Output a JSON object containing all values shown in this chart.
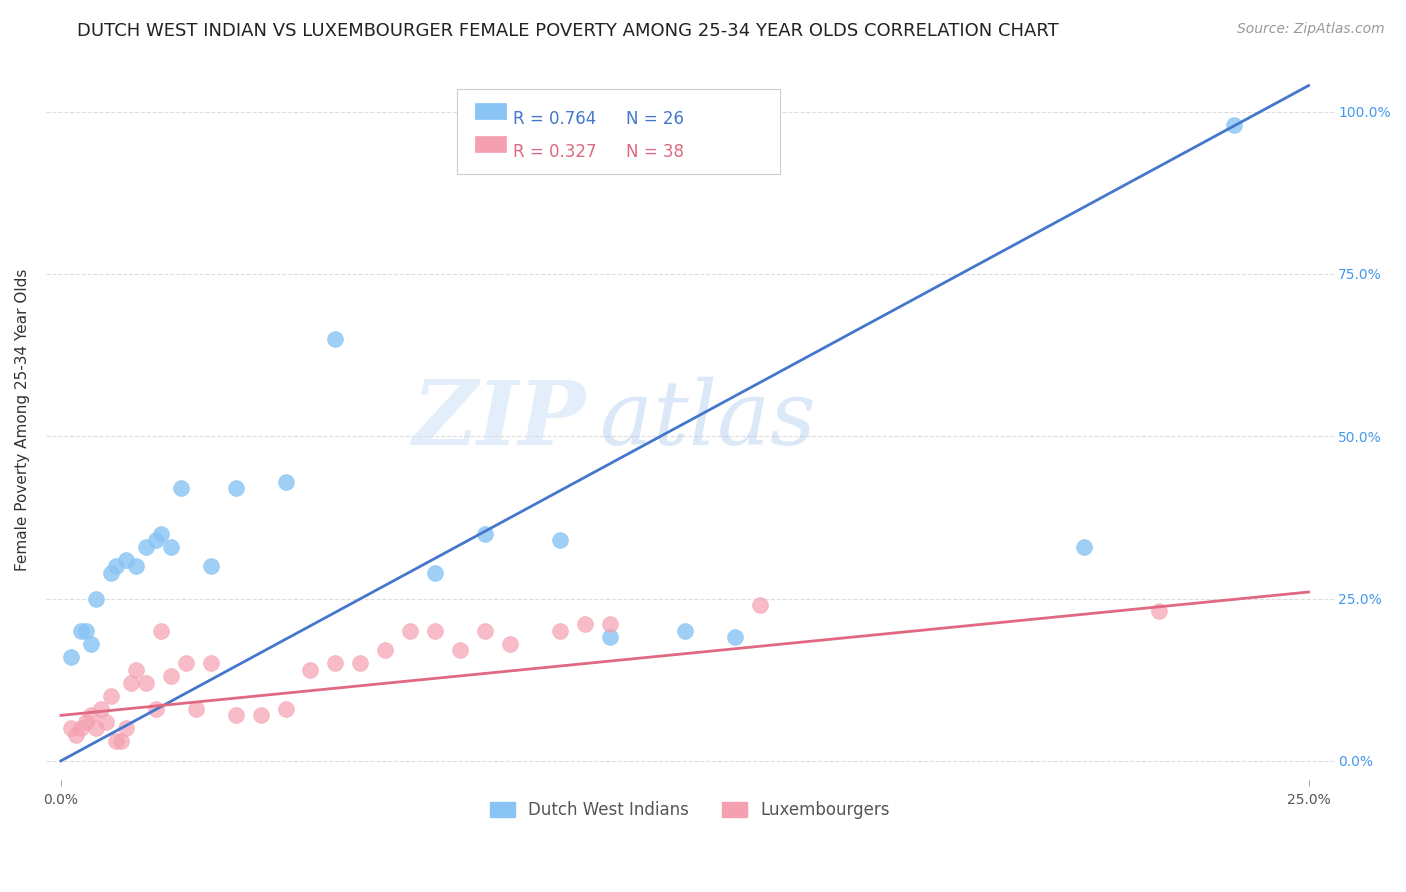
{
  "title": "DUTCH WEST INDIAN VS LUXEMBOURGER FEMALE POVERTY AMONG 25-34 YEAR OLDS CORRELATION CHART",
  "source": "Source: ZipAtlas.com",
  "ylabel_left": "Female Poverty Among 25-34 Year Olds",
  "x_tick_vals": [
    0.0,
    25.0
  ],
  "x_tick_labels": [
    "0.0%",
    "25.0%"
  ],
  "y_ticks_right": [
    0.0,
    25.0,
    50.0,
    75.0,
    100.0
  ],
  "y_tick_labels_right": [
    "0.0%",
    "25.0%",
    "50.0%",
    "75.0%",
    "100.0%"
  ],
  "xlim": [
    -0.3,
    25.5
  ],
  "ylim": [
    -3.0,
    108.0
  ],
  "blue_color": "#89c4f4",
  "pink_color": "#f4a0b0",
  "blue_line_color": "#4477cc",
  "pink_line_color": "#e06880",
  "legend_r_blue": "R = 0.764",
  "legend_n_blue": "N = 26",
  "legend_r_pink": "R = 0.327",
  "legend_n_pink": "N = 38",
  "legend_label_blue": "Dutch West Indians",
  "legend_label_pink": "Luxembourgers",
  "watermark_zip": "ZIP",
  "watermark_atlas": "atlas",
  "blue_scatter_x": [
    0.2,
    0.4,
    0.5,
    0.6,
    0.7,
    1.0,
    1.1,
    1.3,
    1.5,
    1.7,
    1.9,
    2.0,
    2.2,
    2.4,
    3.0,
    3.5,
    4.5,
    5.5,
    7.5,
    8.5,
    10.0,
    11.0,
    12.5,
    13.5,
    20.5,
    23.5
  ],
  "blue_scatter_y": [
    16.0,
    20.0,
    20.0,
    18.0,
    25.0,
    29.0,
    30.0,
    31.0,
    30.0,
    33.0,
    34.0,
    35.0,
    33.0,
    42.0,
    30.0,
    42.0,
    43.0,
    65.0,
    29.0,
    35.0,
    34.0,
    19.0,
    20.0,
    19.0,
    33.0,
    98.0
  ],
  "pink_scatter_x": [
    0.2,
    0.3,
    0.4,
    0.5,
    0.6,
    0.7,
    0.8,
    0.9,
    1.0,
    1.1,
    1.2,
    1.3,
    1.4,
    1.5,
    1.7,
    1.9,
    2.0,
    2.2,
    2.5,
    2.7,
    3.0,
    3.5,
    4.0,
    4.5,
    5.0,
    5.5,
    6.0,
    6.5,
    7.0,
    7.5,
    8.0,
    8.5,
    9.0,
    10.0,
    10.5,
    11.0,
    14.0,
    22.0
  ],
  "pink_scatter_y": [
    5.0,
    4.0,
    5.0,
    6.0,
    7.0,
    5.0,
    8.0,
    6.0,
    10.0,
    3.0,
    3.0,
    5.0,
    12.0,
    14.0,
    12.0,
    8.0,
    20.0,
    13.0,
    15.0,
    8.0,
    15.0,
    7.0,
    7.0,
    8.0,
    14.0,
    15.0,
    15.0,
    17.0,
    20.0,
    20.0,
    17.0,
    20.0,
    18.0,
    20.0,
    21.0,
    21.0,
    24.0,
    23.0
  ],
  "blue_line_x": [
    0.0,
    25.0
  ],
  "blue_line_y": [
    0.0,
    104.0
  ],
  "pink_line_x": [
    0.0,
    25.0
  ],
  "pink_line_y": [
    7.0,
    26.0
  ],
  "background_color": "#ffffff",
  "grid_color": "#dddddd",
  "title_fontsize": 13,
  "source_fontsize": 10,
  "label_fontsize": 11,
  "tick_fontsize": 10,
  "legend_fontsize": 12
}
